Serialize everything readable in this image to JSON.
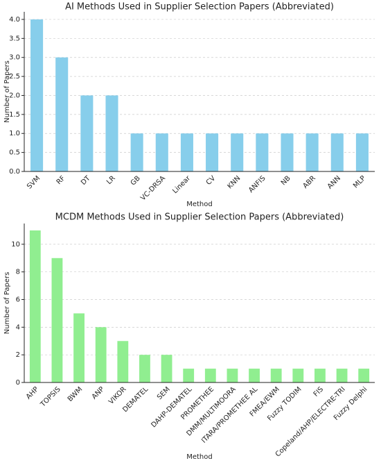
{
  "chart_data": [
    {
      "type": "bar",
      "title": "AI Methods Used in Supplier Selection Papers (Abbreviated)",
      "x_label": "Method",
      "y_label": "Number of Papers",
      "categories": [
        "SVM",
        "RF",
        "DT",
        "LR",
        "GB",
        "VC-DRSA",
        "Linear",
        "CV",
        "KNN",
        "ANFIS",
        "NB",
        "ABR",
        "ANN",
        "MLP"
      ],
      "values": [
        4,
        3,
        2,
        2,
        1,
        1,
        1,
        1,
        1,
        1,
        1,
        1,
        1,
        1
      ],
      "color": "#87ceeb",
      "ylim": [
        0,
        4.2
      ],
      "yticks": [
        {
          "value": 0,
          "label": "0.0"
        },
        0.5,
        {
          "value": 1,
          "label": "1.0"
        },
        1.5,
        {
          "value": 2,
          "label": "2.0"
        },
        2.5,
        {
          "value": 3,
          "label": "3.0"
        },
        3.5,
        {
          "value": 4,
          "label": "4.0"
        }
      ],
      "grid": true
    },
    {
      "type": "bar",
      "title": "MCDM Methods Used in Supplier Selection Papers (Abbreviated)",
      "x_label": "Method",
      "y_label": "Number of Papers",
      "categories": [
        "AHP",
        "TOPSIS",
        "BWM",
        "ANP",
        "VIKOR",
        "DEMATEL",
        "SEM",
        "DAHP-DEMATEL",
        "PROMETHEE",
        "DMM/MULTIMOORA",
        "ITARA/PROMETHEE AL",
        "FMEA/EWM",
        "Fuzzy TODIM",
        "FIS",
        "Copeland/AHP/ELECTRE-TRI",
        "Fuzzy Delphi"
      ],
      "values": [
        11,
        9,
        5,
        4,
        3,
        2,
        2,
        1,
        1,
        1,
        1,
        1,
        1,
        1,
        1,
        1
      ],
      "color": "#90ee90",
      "ylim": [
        0,
        11.5
      ],
      "yticks": [
        0,
        2,
        4,
        6,
        8,
        10
      ],
      "grid": true
    }
  ]
}
